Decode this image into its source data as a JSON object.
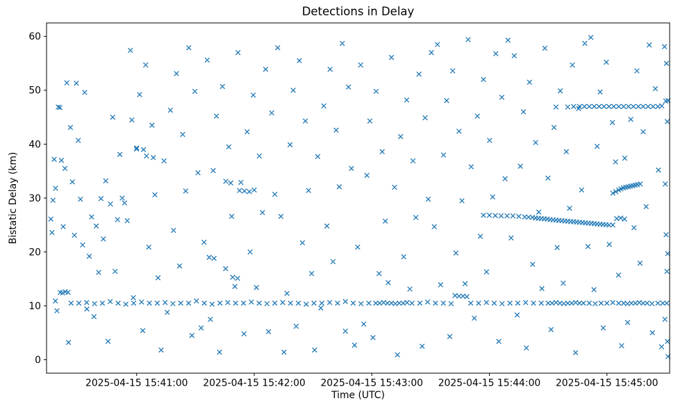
{
  "figure": {
    "background": "#ffffff"
  },
  "chart_data": {
    "type": "scatter",
    "title": "Detections in Delay",
    "xlabel": "Time (UTC)",
    "ylabel": "Bistatic Delay (km)",
    "marker": "x",
    "color": "#1f77b4",
    "x_unit": "seconds after 2025-04-15 15:40:00 UTC",
    "xlim_seconds": [
      14,
      332
    ],
    "ylim": [
      -2.5,
      62.5
    ],
    "xticks_seconds": [
      60,
      120,
      180,
      240,
      300
    ],
    "xtick_labels": [
      "2025-04-15 15:41:00",
      "2025-04-15 15:42:00",
      "2025-04-15 15:43:00",
      "2025-04-15 15:44:00",
      "2025-04-15 15:45:00"
    ],
    "yticks": [
      0,
      10,
      20,
      30,
      40,
      50,
      60
    ],
    "points": [
      [
        16.2,
        26.1
      ],
      [
        16.8,
        23.6
      ],
      [
        17.3,
        29.6
      ],
      [
        17.9,
        37.2
      ],
      [
        18.6,
        31.8
      ],
      [
        19.3,
        9.1
      ],
      [
        20.0,
        46.9
      ],
      [
        20.8,
        46.8
      ],
      [
        21.6,
        37.0
      ],
      [
        22.5,
        24.7
      ],
      [
        23.4,
        35.5
      ],
      [
        24.3,
        51.4
      ],
      [
        25.2,
        3.2
      ],
      [
        26.2,
        43.1
      ],
      [
        27.2,
        33.0
      ],
      [
        28.2,
        23.1
      ],
      [
        29.2,
        51.3
      ],
      [
        30.2,
        40.7
      ],
      [
        31.3,
        29.8
      ],
      [
        32.4,
        21.3
      ],
      [
        33.5,
        49.6
      ],
      [
        34.6,
        9.4
      ],
      [
        35.8,
        19.2
      ],
      [
        37.0,
        26.5
      ],
      [
        38.2,
        8.0
      ],
      [
        39.4,
        24.8
      ],
      [
        40.6,
        16.2
      ],
      [
        41.8,
        29.9
      ],
      [
        43.0,
        22.4
      ],
      [
        44.2,
        33.2
      ],
      [
        45.4,
        3.4
      ],
      [
        46.6,
        28.9
      ],
      [
        47.8,
        45.0
      ],
      [
        49.0,
        16.4
      ],
      [
        50.2,
        26.0
      ],
      [
        51.4,
        38.1
      ],
      [
        52.6,
        30.0
      ],
      [
        53.8,
        29.1
      ],
      [
        55.2,
        25.8
      ],
      [
        56.8,
        57.4
      ],
      [
        58.3,
        11.5
      ],
      [
        59.9,
        39.1
      ],
      [
        61.5,
        49.2
      ],
      [
        63.1,
        5.4
      ],
      [
        64.6,
        54.7
      ],
      [
        66.2,
        20.9
      ],
      [
        67.8,
        43.5
      ],
      [
        69.3,
        30.6
      ],
      [
        70.9,
        15.2
      ],
      [
        72.5,
        1.8
      ],
      [
        74.0,
        36.9
      ],
      [
        75.6,
        8.8
      ],
      [
        77.2,
        46.3
      ],
      [
        78.8,
        24.0
      ],
      [
        80.3,
        53.1
      ],
      [
        81.9,
        17.4
      ],
      [
        83.5,
        41.8
      ],
      [
        85.0,
        31.3
      ],
      [
        86.6,
        57.9
      ],
      [
        88.2,
        4.5
      ],
      [
        89.7,
        49.8
      ],
      [
        91.3,
        34.7
      ],
      [
        92.9,
        5.9
      ],
      [
        94.4,
        21.8
      ],
      [
        96.0,
        55.6
      ],
      [
        97.6,
        7.5
      ],
      [
        99.1,
        35.1
      ],
      [
        100.7,
        45.2
      ],
      [
        102.3,
        1.4
      ],
      [
        103.8,
        50.7
      ],
      [
        105.4,
        16.9
      ],
      [
        107.0,
        39.5
      ],
      [
        108.5,
        26.6
      ],
      [
        110.1,
        13.6
      ],
      [
        111.7,
        57.0
      ],
      [
        113.2,
        32.9
      ],
      [
        114.8,
        4.8
      ],
      [
        116.4,
        42.3
      ],
      [
        117.9,
        20.0
      ],
      [
        119.5,
        49.1
      ],
      [
        121.1,
        13.4
      ],
      [
        122.6,
        37.8
      ],
      [
        124.2,
        27.3
      ],
      [
        125.8,
        53.9
      ],
      [
        127.3,
        5.2
      ],
      [
        128.9,
        45.8
      ],
      [
        130.5,
        30.7
      ],
      [
        132.0,
        57.9
      ],
      [
        133.6,
        26.6
      ],
      [
        135.2,
        1.4
      ],
      [
        136.7,
        12.3
      ],
      [
        138.3,
        39.9
      ],
      [
        139.9,
        50.0
      ],
      [
        141.4,
        6.2
      ],
      [
        143.0,
        55.5
      ],
      [
        144.6,
        21.7
      ],
      [
        146.1,
        44.3
      ],
      [
        147.7,
        31.4
      ],
      [
        149.3,
        16.0
      ],
      [
        150.8,
        1.8
      ],
      [
        152.4,
        37.7
      ],
      [
        154.0,
        9.6
      ],
      [
        155.5,
        47.1
      ],
      [
        157.1,
        24.8
      ],
      [
        158.7,
        53.9
      ],
      [
        160.2,
        18.2
      ],
      [
        161.8,
        42.6
      ],
      [
        163.4,
        32.1
      ],
      [
        164.9,
        58.7
      ],
      [
        166.5,
        5.3
      ],
      [
        168.1,
        50.6
      ],
      [
        169.6,
        35.5
      ],
      [
        171.2,
        2.7
      ],
      [
        172.8,
        20.9
      ],
      [
        174.3,
        54.7
      ],
      [
        175.9,
        6.6
      ],
      [
        177.5,
        34.2
      ],
      [
        179.0,
        44.3
      ],
      [
        180.6,
        4.1
      ],
      [
        182.2,
        49.8
      ],
      [
        183.7,
        16.0
      ],
      [
        185.3,
        38.6
      ],
      [
        186.9,
        25.7
      ],
      [
        188.4,
        14.3
      ],
      [
        190.0,
        56.1
      ],
      [
        191.6,
        32.0
      ],
      [
        193.1,
        0.9
      ],
      [
        194.7,
        41.4
      ],
      [
        196.3,
        19.1
      ],
      [
        197.8,
        48.2
      ],
      [
        199.4,
        13.1
      ],
      [
        201.0,
        36.9
      ],
      [
        202.5,
        26.4
      ],
      [
        204.1,
        53.0
      ],
      [
        205.7,
        2.5
      ],
      [
        207.2,
        44.9
      ],
      [
        208.8,
        29.8
      ],
      [
        210.4,
        57.0
      ],
      [
        211.9,
        24.7
      ],
      [
        213.5,
        58.5
      ],
      [
        215.1,
        13.9
      ],
      [
        216.6,
        38.0
      ],
      [
        218.2,
        48.1
      ],
      [
        219.8,
        4.3
      ],
      [
        221.3,
        53.6
      ],
      [
        222.9,
        19.8
      ],
      [
        224.5,
        42.4
      ],
      [
        226.0,
        29.5
      ],
      [
        227.6,
        14.1
      ],
      [
        229.2,
        59.4
      ],
      [
        230.7,
        35.8
      ],
      [
        232.3,
        7.7
      ],
      [
        233.9,
        45.2
      ],
      [
        235.4,
        22.9
      ],
      [
        237.0,
        52.0
      ],
      [
        238.6,
        16.3
      ],
      [
        240.1,
        40.7
      ],
      [
        241.7,
        30.2
      ],
      [
        243.3,
        56.8
      ],
      [
        244.8,
        3.4
      ],
      [
        246.4,
        48.7
      ],
      [
        248.0,
        33.6
      ],
      [
        249.5,
        59.3
      ],
      [
        251.1,
        22.6
      ],
      [
        252.7,
        56.4
      ],
      [
        254.2,
        8.3
      ],
      [
        255.8,
        35.9
      ],
      [
        257.4,
        46.0
      ],
      [
        258.9,
        2.2
      ],
      [
        260.5,
        51.5
      ],
      [
        262.1,
        17.7
      ],
      [
        263.6,
        40.3
      ],
      [
        265.2,
        27.4
      ],
      [
        266.8,
        13.2
      ],
      [
        268.3,
        57.8
      ],
      [
        269.9,
        33.7
      ],
      [
        271.5,
        5.6
      ],
      [
        273.0,
        43.1
      ],
      [
        274.6,
        20.8
      ],
      [
        276.2,
        49.9
      ],
      [
        277.7,
        14.2
      ],
      [
        279.3,
        38.6
      ],
      [
        280.9,
        28.1
      ],
      [
        282.4,
        54.7
      ],
      [
        284.0,
        1.3
      ],
      [
        285.6,
        46.6
      ],
      [
        287.1,
        31.5
      ],
      [
        288.7,
        58.7
      ],
      [
        290.3,
        21.0
      ],
      [
        291.8,
        59.8
      ],
      [
        293.4,
        13.0
      ],
      [
        295.0,
        39.6
      ],
      [
        296.5,
        49.7
      ],
      [
        298.1,
        5.9
      ],
      [
        299.7,
        55.2
      ],
      [
        301.2,
        21.4
      ],
      [
        302.8,
        44.0
      ],
      [
        304.4,
        36.7
      ],
      [
        305.9,
        15.7
      ],
      [
        307.5,
        2.6
      ],
      [
        309.1,
        37.4
      ],
      [
        310.6,
        6.9
      ],
      [
        312.2,
        44.6
      ],
      [
        313.8,
        24.5
      ],
      [
        315.3,
        53.6
      ],
      [
        316.9,
        17.9
      ],
      [
        318.5,
        42.3
      ],
      [
        320.0,
        28.4
      ],
      [
        321.6,
        58.4
      ],
      [
        323.2,
        5.0
      ],
      [
        324.7,
        50.3
      ],
      [
        326.3,
        35.2
      ],
      [
        327.9,
        2.4
      ],
      [
        329.4,
        58.1
      ],
      [
        330.4,
        55.0
      ],
      [
        330.8,
        44.2
      ],
      [
        329.8,
        32.6
      ],
      [
        330.2,
        23.2
      ],
      [
        331.0,
        19.7
      ],
      [
        330.6,
        16.4
      ],
      [
        329.6,
        7.5
      ],
      [
        330.9,
        3.4
      ],
      [
        331.2,
        0.6
      ],
      [
        105.5,
        33.1
      ],
      [
        108.0,
        32.8
      ],
      [
        112.5,
        31.4
      ],
      [
        115.0,
        31.3
      ],
      [
        117.5,
        31.2
      ],
      [
        120.0,
        31.5
      ],
      [
        109.0,
        15.3
      ],
      [
        111.5,
        15.1
      ],
      [
        97.0,
        19.0
      ],
      [
        99.5,
        18.8
      ],
      [
        57.5,
        44.5
      ],
      [
        60.0,
        39.3
      ],
      [
        63.5,
        39.0
      ],
      [
        65.0,
        37.8
      ],
      [
        68.5,
        37.5
      ],
      [
        18.5,
        10.9
      ],
      [
        21.0,
        12.5
      ],
      [
        22.2,
        12.4
      ],
      [
        23.6,
        12.6
      ],
      [
        25.0,
        12.5
      ],
      [
        26.5,
        10.5
      ],
      [
        30.5,
        10.5
      ],
      [
        34.5,
        10.6
      ],
      [
        38.5,
        10.4
      ],
      [
        42.5,
        10.5
      ],
      [
        46.5,
        10.8
      ],
      [
        50.5,
        10.5
      ],
      [
        54.5,
        10.3
      ],
      [
        58.5,
        10.5
      ],
      [
        62.5,
        10.7
      ],
      [
        66.5,
        10.5
      ],
      [
        70.5,
        10.5
      ],
      [
        74.5,
        10.6
      ],
      [
        78.5,
        10.4
      ],
      [
        82.5,
        10.5
      ],
      [
        86.5,
        10.5
      ],
      [
        90.5,
        10.9
      ],
      [
        94.5,
        10.5
      ],
      [
        98.5,
        10.3
      ],
      [
        102.5,
        10.5
      ],
      [
        106.5,
        10.6
      ],
      [
        110.5,
        10.5
      ],
      [
        114.5,
        10.5
      ],
      [
        118.5,
        10.7
      ],
      [
        122.5,
        10.5
      ],
      [
        126.5,
        10.4
      ],
      [
        130.5,
        10.5
      ],
      [
        134.5,
        10.6
      ],
      [
        138.5,
        10.5
      ],
      [
        142.5,
        10.5
      ],
      [
        146.5,
        10.3
      ],
      [
        150.5,
        10.5
      ],
      [
        154.5,
        10.5
      ],
      [
        158.5,
        10.6
      ],
      [
        162.5,
        10.5
      ],
      [
        166.5,
        10.8
      ],
      [
        170.5,
        10.5
      ],
      [
        174.5,
        10.4
      ],
      [
        178.5,
        10.5
      ],
      [
        182.0,
        10.5
      ],
      [
        184.0,
        10.5
      ],
      [
        186.0,
        10.6
      ],
      [
        188.0,
        10.5
      ],
      [
        190.0,
        10.5
      ],
      [
        192.0,
        10.4
      ],
      [
        194.0,
        10.5
      ],
      [
        196.0,
        10.5
      ],
      [
        198.0,
        10.6
      ],
      [
        200.5,
        10.5
      ],
      [
        204.5,
        10.5
      ],
      [
        208.5,
        10.7
      ],
      [
        212.5,
        10.5
      ],
      [
        216.5,
        10.5
      ],
      [
        220.5,
        10.4
      ],
      [
        222.5,
        11.9
      ],
      [
        224.5,
        11.8
      ],
      [
        226.5,
        11.8
      ],
      [
        228.5,
        11.7
      ],
      [
        230.5,
        10.5
      ],
      [
        234.5,
        10.5
      ],
      [
        238.5,
        10.6
      ],
      [
        242.5,
        10.5
      ],
      [
        246.5,
        10.4
      ],
      [
        250.5,
        10.5
      ],
      [
        254.5,
        10.5
      ],
      [
        258.5,
        10.6
      ],
      [
        262.5,
        10.5
      ],
      [
        266.5,
        10.5
      ],
      [
        270.0,
        10.5
      ],
      [
        272.0,
        10.5
      ],
      [
        274.0,
        10.6
      ],
      [
        276.0,
        10.5
      ],
      [
        278.0,
        10.4
      ],
      [
        280.0,
        10.5
      ],
      [
        282.0,
        10.5
      ],
      [
        284.0,
        10.6
      ],
      [
        286.0,
        10.5
      ],
      [
        288.0,
        10.5
      ],
      [
        291.0,
        10.5
      ],
      [
        294.0,
        10.4
      ],
      [
        297.0,
        10.5
      ],
      [
        300.0,
        10.5
      ],
      [
        303.0,
        10.6
      ],
      [
        306.0,
        10.5
      ],
      [
        308.5,
        10.5
      ],
      [
        310.5,
        10.4
      ],
      [
        312.5,
        10.5
      ],
      [
        314.5,
        10.5
      ],
      [
        316.5,
        10.6
      ],
      [
        318.5,
        10.5
      ],
      [
        320.5,
        10.5
      ],
      [
        323.0,
        10.4
      ],
      [
        326.0,
        10.5
      ],
      [
        328.5,
        10.5
      ],
      [
        330.5,
        10.5
      ],
      [
        274.0,
        46.9
      ],
      [
        280.0,
        46.9
      ],
      [
        283.0,
        47.0
      ],
      [
        286.0,
        47.0
      ],
      [
        288.5,
        47.0
      ],
      [
        291.0,
        47.0
      ],
      [
        293.5,
        47.0
      ],
      [
        296.0,
        47.0
      ],
      [
        298.5,
        47.0
      ],
      [
        301.0,
        47.0
      ],
      [
        303.5,
        47.0
      ],
      [
        306.0,
        47.0
      ],
      [
        308.5,
        47.0
      ],
      [
        311.0,
        47.0
      ],
      [
        313.5,
        47.0
      ],
      [
        316.0,
        47.0
      ],
      [
        318.5,
        47.0
      ],
      [
        321.0,
        47.0
      ],
      [
        323.5,
        47.0
      ],
      [
        326.0,
        47.0
      ],
      [
        328.0,
        47.1
      ],
      [
        330.0,
        48.0
      ],
      [
        331.2,
        48.1
      ],
      [
        237.0,
        26.8
      ],
      [
        240.0,
        26.8
      ],
      [
        243.0,
        26.75
      ],
      [
        246.0,
        26.7
      ],
      [
        249.0,
        26.7
      ],
      [
        252.0,
        26.7
      ],
      [
        255.0,
        26.6
      ],
      [
        258.0,
        26.5
      ],
      [
        260.0,
        26.45
      ],
      [
        262.0,
        26.4
      ],
      [
        263.5,
        26.3
      ],
      [
        265.0,
        26.25
      ],
      [
        266.5,
        26.2
      ],
      [
        268.0,
        26.15
      ],
      [
        269.5,
        26.1
      ],
      [
        271.0,
        26.0
      ],
      [
        272.5,
        25.95
      ],
      [
        274.0,
        25.9
      ],
      [
        275.5,
        25.85
      ],
      [
        277.0,
        25.8
      ],
      [
        278.5,
        25.75
      ],
      [
        280.0,
        25.7
      ],
      [
        281.5,
        25.65
      ],
      [
        283.0,
        25.6
      ],
      [
        284.5,
        25.55
      ],
      [
        286.0,
        25.5
      ],
      [
        287.5,
        25.45
      ],
      [
        289.0,
        25.4
      ],
      [
        290.5,
        25.35
      ],
      [
        292.0,
        25.3
      ],
      [
        293.5,
        25.25
      ],
      [
        295.0,
        25.2
      ],
      [
        296.5,
        25.15
      ],
      [
        298.0,
        25.1
      ],
      [
        299.5,
        25.05
      ],
      [
        301.0,
        25.0
      ],
      [
        303.0,
        25.0
      ],
      [
        303.0,
        30.9
      ],
      [
        304.5,
        31.2
      ],
      [
        306.0,
        31.5
      ],
      [
        307.2,
        31.7
      ],
      [
        308.4,
        31.9
      ],
      [
        309.6,
        32.0
      ],
      [
        310.8,
        32.1
      ],
      [
        312.0,
        32.2
      ],
      [
        313.2,
        32.3
      ],
      [
        314.4,
        32.4
      ],
      [
        315.6,
        32.5
      ],
      [
        317.0,
        32.6
      ],
      [
        305.0,
        26.2
      ],
      [
        307.0,
        26.3
      ],
      [
        309.0,
        26.1
      ]
    ]
  }
}
